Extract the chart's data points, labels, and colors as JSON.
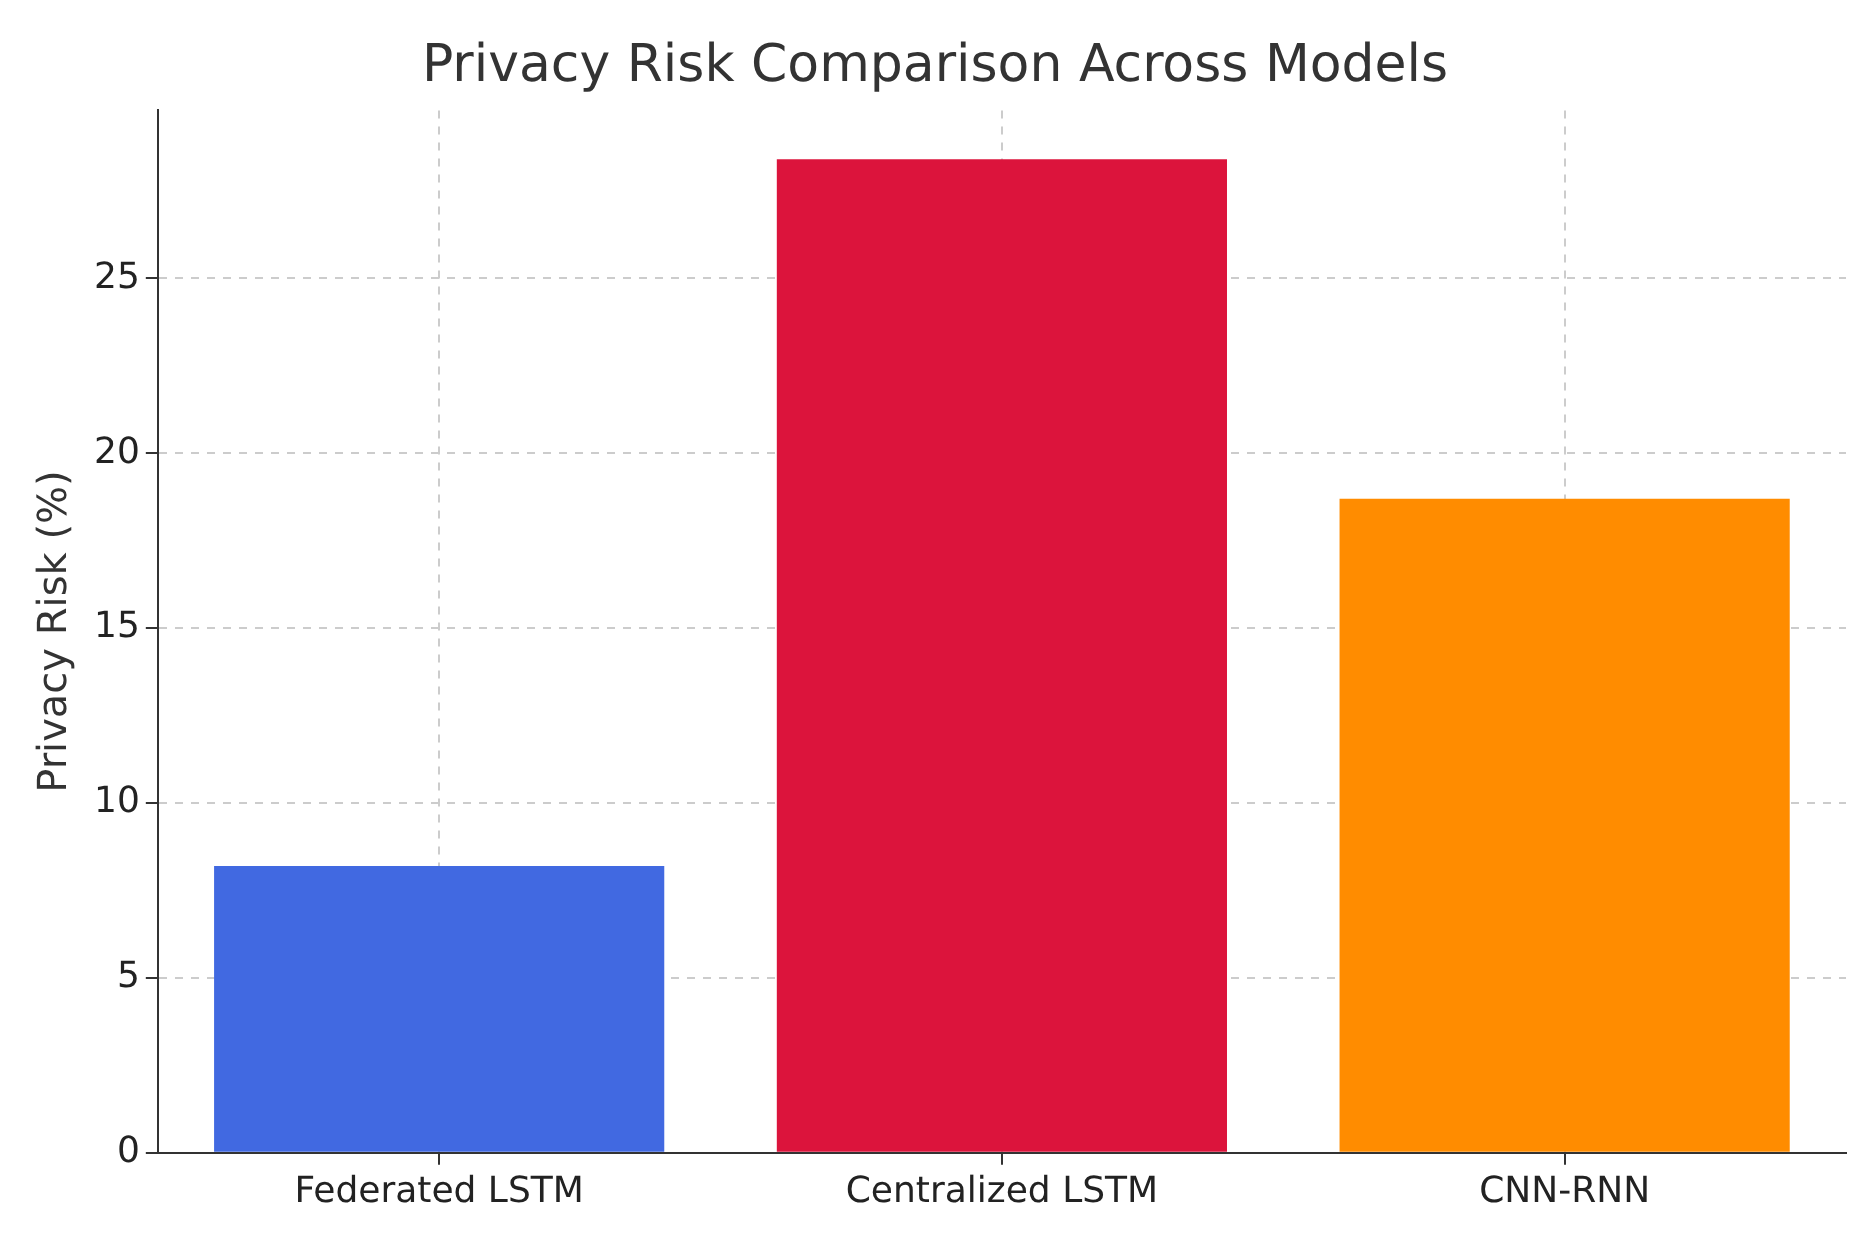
{
  "chart_data": {
    "type": "bar",
    "title": "Privacy Risk Comparison Across Models",
    "ylabel": "Privacy Risk (%)",
    "categories": [
      "Federated LSTM",
      "Centralized LSTM",
      "CNN-RNN"
    ],
    "values": [
      8.2,
      28.4,
      18.7
    ],
    "colors": [
      "#4169e1",
      "#dc143c",
      "#ff8c00"
    ],
    "ylim": [
      0,
      29.8
    ],
    "yticks": [
      0,
      5,
      10,
      15,
      20,
      25
    ],
    "grid": true,
    "legend": false
  }
}
